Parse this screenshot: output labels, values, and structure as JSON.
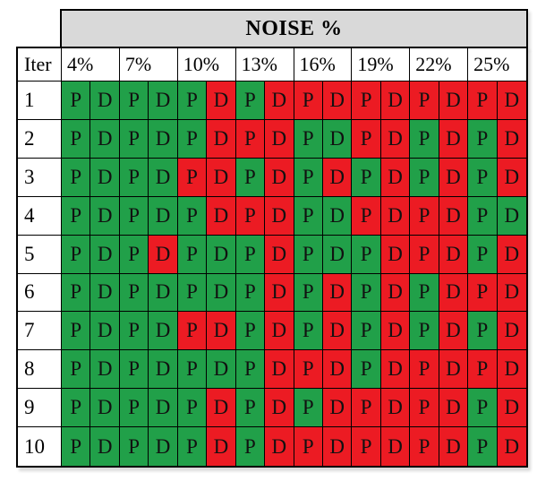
{
  "chart_data": {
    "type": "heatmap",
    "title": "NOISE %",
    "row_label": "Iter",
    "noise_levels": [
      "4%",
      "7%",
      "10%",
      "13%",
      "16%",
      "19%",
      "22%",
      "25%"
    ],
    "pd_labels": [
      "P",
      "D"
    ],
    "legend_position": "none",
    "grid": true,
    "colors": {
      "G": "#21a049",
      "R": "#ec1b23",
      "header_bg": "#d9d9d9",
      "border": "#000000",
      "row_label_bg": "#ffffff"
    },
    "rows": [
      "1",
      "2",
      "3",
      "4",
      "5",
      "6",
      "7",
      "8",
      "9",
      "10"
    ],
    "columns": [
      "4% P",
      "4% D",
      "7% P",
      "7% D",
      "10% P",
      "10% D",
      "13% P",
      "13% D",
      "16% P",
      "16% D",
      "19% P",
      "19% D",
      "22% P",
      "22% D",
      "25% P",
      "25% D"
    ],
    "values": [
      [
        "G",
        "G",
        "G",
        "G",
        "G",
        "R",
        "G",
        "R",
        "R",
        "R",
        "R",
        "R",
        "R",
        "R",
        "R",
        "R"
      ],
      [
        "G",
        "G",
        "G",
        "G",
        "G",
        "R",
        "R",
        "R",
        "G",
        "G",
        "R",
        "R",
        "G",
        "R",
        "G",
        "R"
      ],
      [
        "G",
        "G",
        "G",
        "G",
        "R",
        "R",
        "G",
        "R",
        "G",
        "R",
        "G",
        "R",
        "G",
        "R",
        "G",
        "R"
      ],
      [
        "G",
        "G",
        "G",
        "G",
        "G",
        "R",
        "R",
        "R",
        "G",
        "G",
        "R",
        "R",
        "R",
        "R",
        "G",
        "G"
      ],
      [
        "G",
        "G",
        "G",
        "R",
        "G",
        "G",
        "G",
        "R",
        "G",
        "G",
        "G",
        "R",
        "R",
        "R",
        "G",
        "R"
      ],
      [
        "G",
        "G",
        "G",
        "G",
        "G",
        "G",
        "G",
        "R",
        "G",
        "R",
        "G",
        "R",
        "G",
        "R",
        "R",
        "R"
      ],
      [
        "G",
        "G",
        "G",
        "G",
        "R",
        "R",
        "G",
        "R",
        "G",
        "R",
        "G",
        "R",
        "G",
        "R",
        "G",
        "R"
      ],
      [
        "G",
        "G",
        "G",
        "G",
        "G",
        "G",
        "G",
        "R",
        "R",
        "R",
        "G",
        "R",
        "R",
        "R",
        "R",
        "R"
      ],
      [
        "G",
        "G",
        "G",
        "G",
        "G",
        "R",
        "G",
        "R",
        "G",
        "R",
        "R",
        "R",
        "R",
        "R",
        "G",
        "R"
      ],
      [
        "G",
        "G",
        "G",
        "G",
        "G",
        "R",
        "G",
        "R",
        "R",
        "R",
        "R",
        "R",
        "R",
        "R",
        "G",
        "R"
      ]
    ]
  }
}
